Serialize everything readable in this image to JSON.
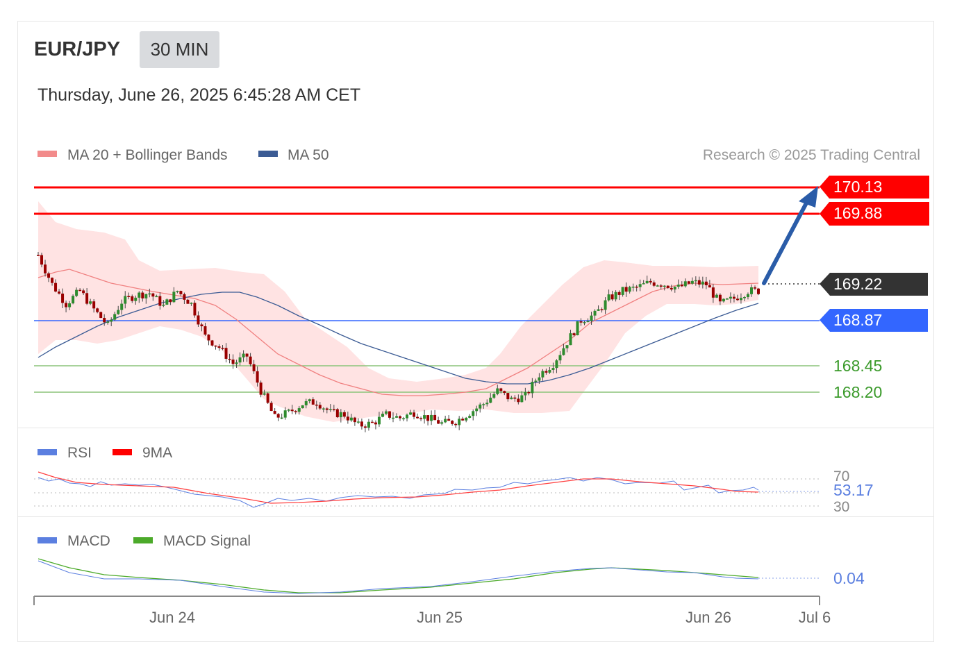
{
  "header": {
    "symbol": "EUR/JPY",
    "timeframe": "30 MIN",
    "datetime": "Thursday, June 26, 2025 6:45:28 AM CET"
  },
  "legend": {
    "ma20_label": "MA 20 + Bollinger Bands",
    "ma50_label": "MA 50",
    "rsi_label": "RSI",
    "rsi_ma_label": "9MA",
    "macd_label": "MACD",
    "macd_signal_label": "MACD Signal",
    "copyright": "Research © 2025 Trading Central"
  },
  "colors": {
    "resistance": "#ff0000",
    "support_major": "#3366ff",
    "support_minor": "#5aa03a",
    "last_price": "#333333",
    "ma20": "#f08080",
    "ma50": "#3b5b94",
    "bollinger_fill": "#ffe0e0",
    "candle_up": "#2e8b2e",
    "candle_down": "#990000",
    "arrow": "#2a5ca8",
    "rsi": "#5b7fe0",
    "macd": "#5b7fe0",
    "macd_signal": "#4caa2a"
  },
  "chart_data": {
    "type": "candlestick",
    "price_levels": [
      {
        "label": "170.13",
        "value": 170.13,
        "kind": "resistance"
      },
      {
        "label": "169.88",
        "value": 169.88,
        "kind": "resistance"
      },
      {
        "label": "169.22",
        "value": 169.22,
        "kind": "last"
      },
      {
        "label": "168.87",
        "value": 168.87,
        "kind": "support"
      },
      {
        "label": "168.45",
        "value": 168.45,
        "kind": "support-minor"
      },
      {
        "label": "168.20",
        "value": 168.2,
        "kind": "support-minor"
      }
    ],
    "ylim": [
      168.0,
      170.3
    ],
    "x_ticks": [
      "Jun 24",
      "Jun 25",
      "Jun 26",
      "Jul 6"
    ],
    "close_series": [
      169.55,
      169.28,
      169.1,
      169.22,
      169.05,
      168.9,
      169.12,
      169.18,
      169.2,
      169.08,
      169.22,
      169.1,
      168.8,
      168.7,
      168.55,
      168.62,
      168.3,
      168.05,
      168.1,
      168.18,
      168.2,
      168.1,
      168.08,
      167.98,
      168.0,
      168.08,
      168.05,
      168.1,
      168.05,
      168.0,
      168.02,
      168.1,
      168.18,
      168.3,
      168.22,
      168.25,
      168.45,
      168.55,
      168.75,
      168.95,
      169.0,
      169.15,
      169.22,
      169.25,
      169.3,
      169.28,
      169.25,
      169.3,
      169.28,
      169.1,
      169.15,
      169.22
    ],
    "ma20_series": [
      169.35,
      169.32,
      169.3,
      169.28,
      169.25,
      169.22,
      169.2,
      169.15,
      169.08,
      168.95,
      168.8,
      168.65,
      168.52,
      168.42,
      168.3,
      168.24,
      168.2,
      168.15,
      168.12,
      168.1,
      168.08,
      168.1,
      168.12,
      168.14,
      168.16,
      168.18,
      168.24,
      168.35,
      168.5,
      168.65,
      168.8,
      168.95,
      169.05,
      169.1,
      169.15,
      169.18,
      169.18
    ],
    "ma50_series": [
      168.45,
      168.72,
      168.9,
      169.0,
      169.05,
      169.02,
      168.9,
      168.75,
      168.6,
      168.45,
      168.35,
      168.3,
      168.32,
      168.4,
      168.55,
      168.65,
      168.8,
      168.98,
      169.1
    ],
    "rsi": {
      "value_label": "53.17",
      "levels": [
        "70",
        "30"
      ]
    },
    "macd": {
      "value_label": "0.04"
    }
  }
}
